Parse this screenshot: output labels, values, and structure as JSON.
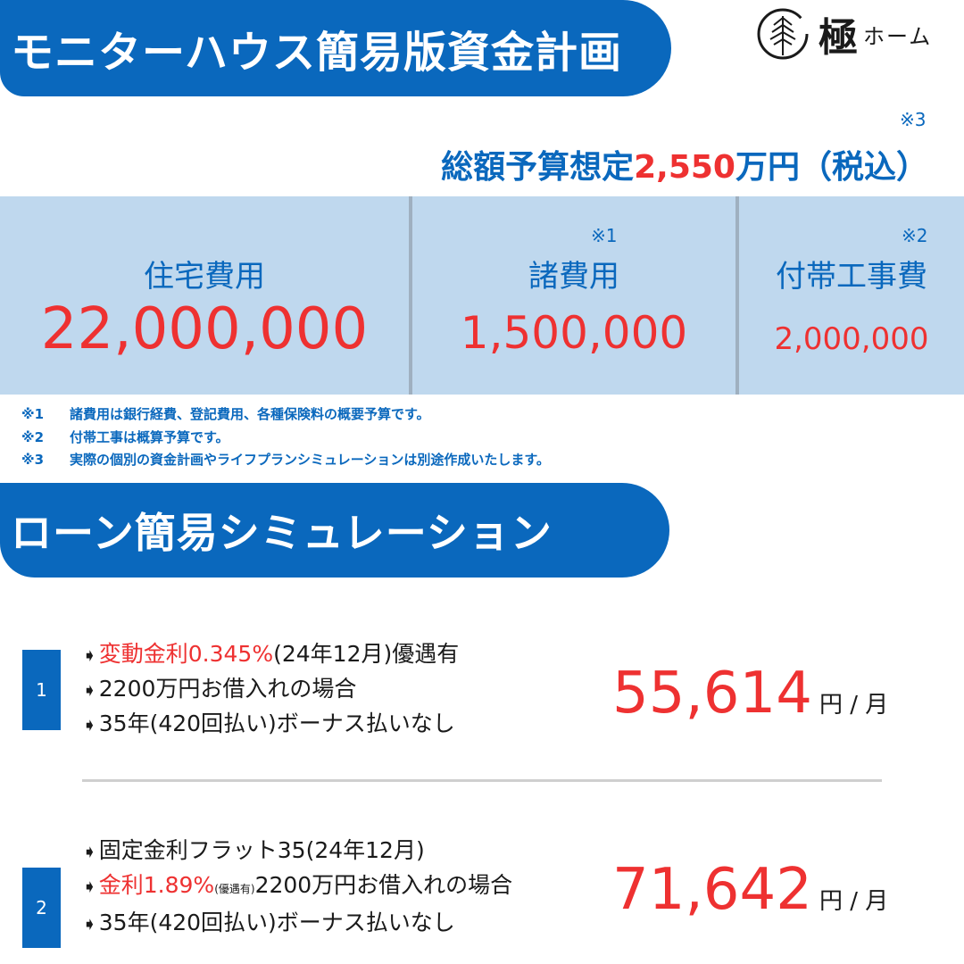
{
  "header": {
    "title": "モニターハウス簡易版資金計画",
    "logo": {
      "kanji": "極",
      "kana": "ホーム"
    }
  },
  "total": {
    "note_mark": "※3",
    "prefix": "総額予算想定",
    "amount": "2,550",
    "suffix": "万円（税込）"
  },
  "costs": [
    {
      "label": "住宅費用",
      "mark": "",
      "value": "22,000,000"
    },
    {
      "label": "諸費用",
      "mark": "※1",
      "value": "1,500,000"
    },
    {
      "label": "付帯工事費",
      "mark": "※2",
      "value": "2,000,000"
    }
  ],
  "footnotes": [
    {
      "mark": "※1",
      "text": "諸費用は銀行経費、登記費用、各種保険料の概要予算です。"
    },
    {
      "mark": "※2",
      "text": "付帯工事は概算予算です。"
    },
    {
      "mark": "※3",
      "text": "実際の個別の資金計画やライフプランシミュレーションは別途作成いたします。"
    }
  ],
  "loan_section": {
    "title": "ローン簡易シミュレーション",
    "arrow": "➧",
    "items": [
      {
        "number": "1",
        "line1_hl": "変動金利0.345%",
        "line1_rest": "(24年12月)優遇有",
        "line2": "2200万円お借入れの場合",
        "line3": "35年(420回払い)ボーナス払いなし",
        "amount": "55,614",
        "unit": "円 / 月"
      },
      {
        "number": "2",
        "line1": "固定金利フラット35(24年12月)",
        "line2_hl": "金利1.89%",
        "line2_small": "(優遇有)",
        "line2_rest": "2200万円お借入れの場合",
        "line3": "35年(420回払い)ボーナス払いなし",
        "amount": "71,642",
        "unit": "円 / 月"
      }
    ]
  },
  "colors": {
    "brand_blue": "#0a68bd",
    "accent_red": "#ee3131",
    "cell_bg": "#bfd8ee"
  }
}
